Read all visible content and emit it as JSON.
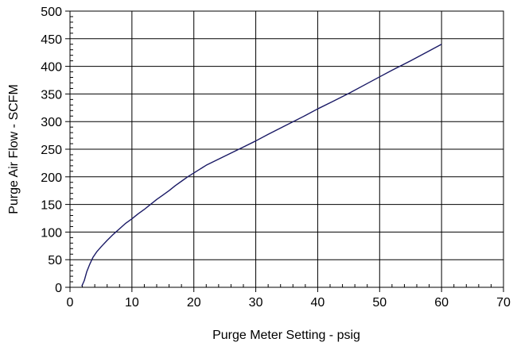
{
  "chart_data": {
    "type": "line",
    "title": "",
    "xlabel": "Purge Meter Setting - psig",
    "ylabel": "Purge Air Flow - SCFM",
    "xlim": [
      0,
      70
    ],
    "ylim": [
      0,
      500
    ],
    "x_ticks": [
      0,
      10,
      20,
      30,
      40,
      50,
      60,
      70
    ],
    "y_ticks": [
      0,
      50,
      100,
      150,
      200,
      250,
      300,
      350,
      400,
      450,
      500
    ],
    "grid": true,
    "legend": "none",
    "colors": {
      "line": "#1a1a66",
      "grid": "#000000",
      "background": "#ffffff"
    },
    "series": [
      {
        "x": [
          1.9,
          2.3,
          2.7,
          3.2,
          3.7,
          4.3,
          5.0,
          6.0,
          7.0,
          8.0,
          9.0,
          10.0,
          11.0,
          12.0,
          13.0,
          14.0,
          15.0,
          16.0,
          17.0,
          18.0,
          19.0,
          20.0,
          21.0,
          22.0,
          24.0,
          26.0,
          28.0,
          30.0,
          32.0,
          35.0,
          38.0,
          40.0,
          42.0,
          45.0,
          48.0,
          50.0,
          52.0,
          55.0,
          58.0,
          60.0
        ],
        "y": [
          2,
          12,
          28,
          42,
          54,
          64,
          73,
          85,
          96,
          106,
          116,
          124,
          133,
          141,
          150,
          159,
          167,
          175,
          184,
          192,
          200,
          207,
          214,
          221,
          232,
          243,
          254,
          265,
          277,
          294,
          311,
          323,
          334,
          351,
          369,
          381,
          393,
          410,
          428,
          440
        ]
      }
    ]
  }
}
